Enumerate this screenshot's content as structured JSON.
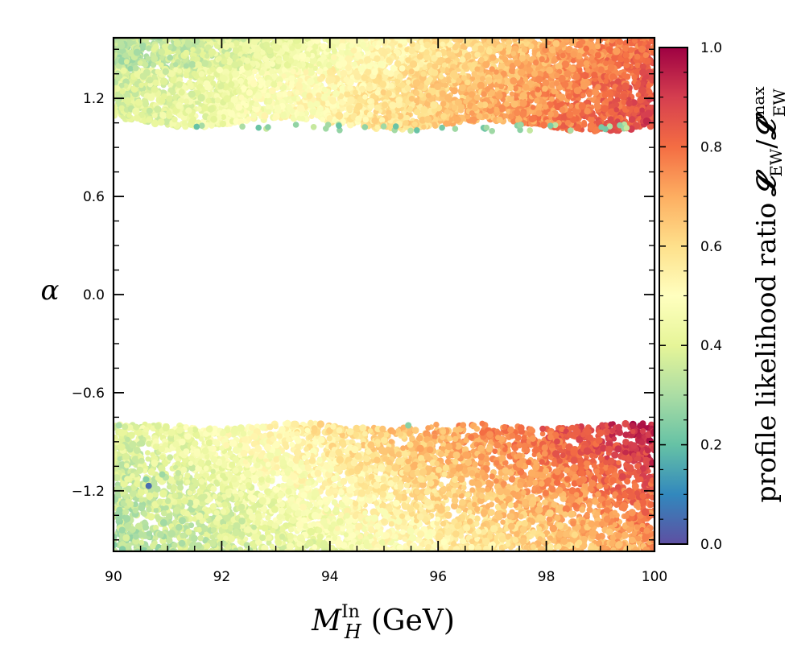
{
  "chart_data": {
    "type": "scatter",
    "title": "",
    "xlabel": {
      "symbol": "M",
      "sup": "In",
      "sub": "H",
      "unit": "(GeV)"
    },
    "ylabel": "α",
    "xlim": [
      90,
      100
    ],
    "ylim": [
      -1.57,
      1.57
    ],
    "xticks": [
      90,
      92,
      94,
      96,
      98,
      100
    ],
    "xtick_labels": [
      "90",
      "92",
      "94",
      "96",
      "98",
      "100"
    ],
    "yticks": [
      -1.2,
      -0.6,
      0.0,
      0.6,
      1.2
    ],
    "ytick_labels": [
      "−1.2",
      "−0.6",
      "0.0",
      "0.6",
      "1.2"
    ],
    "colorbar": {
      "label_text": "profile likelihood ratio",
      "label_math": "𝓛",
      "label_sub": "EW",
      "label_sup": "max",
      "range": [
        0.0,
        1.0
      ],
      "ticks": [
        0.0,
        0.2,
        0.4,
        0.6,
        0.8,
        1.0
      ],
      "tick_labels": [
        "0.0",
        "0.2",
        "0.4",
        "0.6",
        "0.8",
        "1.0"
      ],
      "colormap": "Spectral_r",
      "colormap_stops": [
        "#5e4fa2",
        "#3288bd",
        "#66c2a5",
        "#abdda4",
        "#e6f598",
        "#ffffbf",
        "#fee08b",
        "#fdae61",
        "#f46d43",
        "#d53e4f",
        "#9e0142"
      ]
    },
    "regions": [
      {
        "name": "upper band",
        "alpha_range": [
          1.02,
          1.57
        ],
        "edge_alpha": 1.06,
        "description": "likelihood increases with mass",
        "value_at_left": 0.38,
        "value_at_right": 0.85
      },
      {
        "name": "lower band",
        "alpha_range": [
          -1.57,
          -0.78
        ],
        "edge_alpha": -0.8,
        "value_at_left": 0.35,
        "value_at_right": 0.92
      }
    ],
    "outliers": [
      {
        "x": 90.65,
        "y": -1.17,
        "value": 0.05
      },
      {
        "x": 90.6,
        "y": -1.13,
        "value": 0.25
      },
      {
        "x": 90.9,
        "y": -1.1,
        "value": 0.28
      },
      {
        "x": 95.45,
        "y": -0.8,
        "value": 0.25
      },
      {
        "x": 90.1,
        "y": -0.8,
        "value": 0.3
      }
    ]
  }
}
